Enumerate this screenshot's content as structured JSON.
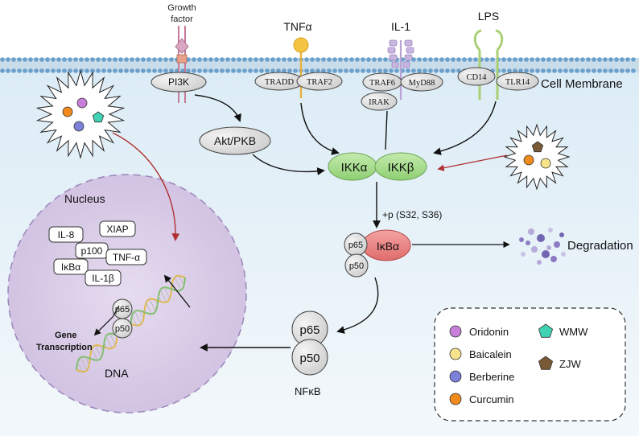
{
  "membrane": {
    "label": "Cell Membrane"
  },
  "ligands": {
    "growth_factor_line1": "Growth",
    "growth_factor_line2": "factor",
    "tnf": "TNFα",
    "il1": "IL-1",
    "lps": "LPS"
  },
  "receptors": {
    "pi3k": "PI3K",
    "tradd": "TRADD",
    "traf2": "TRAF2",
    "traf6": "TRAF6",
    "myd88": "MyD88",
    "irak": "IRAK",
    "cd14": "CD14",
    "tlr14": "TLR14"
  },
  "pathway": {
    "akt": "Akt/PKB",
    "ikka": "IKKα",
    "ikkb": "IKKβ",
    "phospho": "+p (S32, S36)",
    "ikba": "IκBα",
    "p65": "p65",
    "p50": "p50",
    "degradation": "Degradation",
    "nfkb": "NFκB"
  },
  "nucleus": {
    "label": "Nucleus",
    "genes": [
      "IL-8",
      "XIAP",
      "p100",
      "IκBα",
      "TNF-α",
      "IL-1β"
    ],
    "gene_transcription_line1": "Gene",
    "gene_transcription_line2": "Transcription",
    "dna": "DNA",
    "p65": "p65",
    "p50": "p50"
  },
  "legend": {
    "items": [
      {
        "label": "Oridonin",
        "color": "#c77fd9",
        "shape": "circle"
      },
      {
        "label": "Baicalein",
        "color": "#f6e48c",
        "shape": "circle"
      },
      {
        "label": "Berberine",
        "color": "#7d80d8",
        "shape": "circle"
      },
      {
        "label": "Curcumin",
        "color": "#f08a1c",
        "shape": "circle"
      },
      {
        "label": "WMW",
        "color": "#3fd3b4",
        "shape": "pentagon"
      },
      {
        "label": "ZJW",
        "color": "#7a5a36",
        "shape": "pentagon"
      }
    ]
  },
  "colors": {
    "ikk": "#a8dd8e",
    "ikba": "#ef8a8a",
    "node_fill": "#e6e6e6",
    "nucleus_fill": "#ddd2ea",
    "membrane_dots": "#6aa0cc",
    "inhibit_arrow": "#c0392b"
  }
}
